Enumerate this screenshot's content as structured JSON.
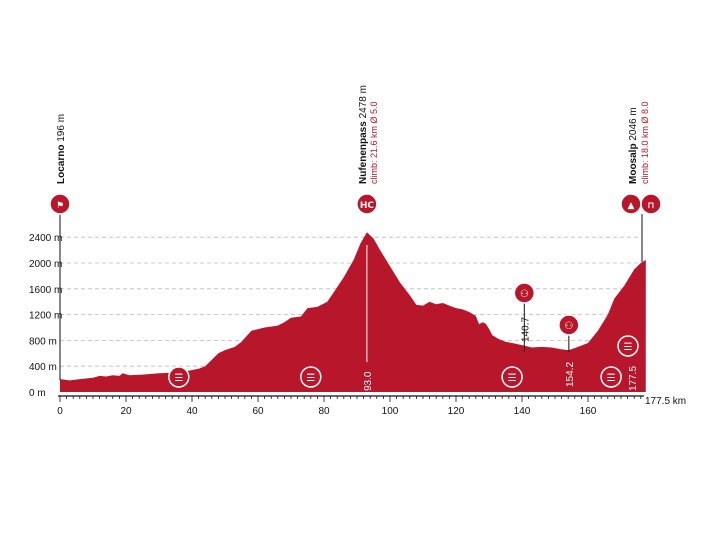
{
  "chart_data": {
    "type": "area",
    "x_unit": "km",
    "y_ticks": [
      "0 m",
      "400 m",
      "800 m",
      "1200 m",
      "1600 m",
      "2000 m",
      "2400 m"
    ],
    "y_tick_values": [
      0,
      400,
      800,
      1200,
      1600,
      2000,
      2400
    ],
    "x_ticks": [
      "0",
      "20",
      "40",
      "60",
      "80",
      "100",
      "120",
      "140",
      "160"
    ],
    "x_tick_values": [
      0,
      20,
      40,
      60,
      80,
      100,
      120,
      140,
      160
    ],
    "xlim": [
      0,
      177.5
    ],
    "ylim": [
      0,
      2478
    ],
    "end_label": "177.5 km",
    "colors": {
      "profile": "#b8162a",
      "grid": "#bbbbbb"
    },
    "profile": [
      [
        0,
        200
      ],
      [
        3,
        180
      ],
      [
        6,
        200
      ],
      [
        10,
        220
      ],
      [
        12,
        250
      ],
      [
        14,
        240
      ],
      [
        16,
        260
      ],
      [
        18,
        250
      ],
      [
        19,
        290
      ],
      [
        21,
        260
      ],
      [
        25,
        270
      ],
      [
        30,
        290
      ],
      [
        35,
        300
      ],
      [
        38,
        320
      ],
      [
        42,
        360
      ],
      [
        44,
        400
      ],
      [
        46,
        500
      ],
      [
        48,
        600
      ],
      [
        50,
        650
      ],
      [
        53,
        700
      ],
      [
        55,
        780
      ],
      [
        58,
        950
      ],
      [
        62,
        1000
      ],
      [
        66,
        1030
      ],
      [
        68,
        1080
      ],
      [
        70,
        1150
      ],
      [
        73,
        1170
      ],
      [
        75,
        1300
      ],
      [
        78,
        1320
      ],
      [
        81,
        1400
      ],
      [
        83,
        1550
      ],
      [
        86,
        1780
      ],
      [
        89,
        2050
      ],
      [
        91,
        2300
      ],
      [
        93,
        2478
      ],
      [
        95,
        2380
      ],
      [
        97,
        2200
      ],
      [
        100,
        1950
      ],
      [
        103,
        1700
      ],
      [
        106,
        1500
      ],
      [
        108,
        1350
      ],
      [
        110,
        1340
      ],
      [
        112,
        1400
      ],
      [
        114,
        1360
      ],
      [
        116,
        1380
      ],
      [
        118,
        1340
      ],
      [
        120,
        1300
      ],
      [
        122,
        1280
      ],
      [
        124,
        1240
      ],
      [
        126,
        1180
      ],
      [
        127,
        1050
      ],
      [
        128,
        1080
      ],
      [
        129,
        1060
      ],
      [
        130,
        980
      ],
      [
        131,
        880
      ],
      [
        133,
        820
      ],
      [
        135,
        780
      ],
      [
        137,
        760
      ],
      [
        140.7,
        720
      ],
      [
        143,
        690
      ],
      [
        146,
        700
      ],
      [
        149,
        690
      ],
      [
        152,
        660
      ],
      [
        154.2,
        650
      ],
      [
        157,
        700
      ],
      [
        160,
        760
      ],
      [
        163,
        950
      ],
      [
        166,
        1200
      ],
      [
        168,
        1450
      ],
      [
        171,
        1650
      ],
      [
        174,
        1900
      ],
      [
        176,
        2000
      ],
      [
        177.5,
        2046
      ]
    ],
    "points": [
      {
        "name": "Locarno",
        "elevation": "196 m",
        "climb": "",
        "km": 0,
        "icon": "start-flag-icon"
      },
      {
        "name": "Nufenenpass",
        "elevation": "2478 m",
        "climb": "climb: 21.6 km Ø 5.0",
        "km": 93.0,
        "km_label": "93.0",
        "icon": "mountain-hc-icon"
      },
      {
        "name": "Moosalp",
        "elevation": "2046 m",
        "climb": "climb: 18.0 km Ø 8.0",
        "km": 177.5,
        "km_label": "177.5",
        "icon": "mountain-finish-icon"
      }
    ],
    "sprints": [
      {
        "km": 140.7,
        "km_label": "140.7"
      },
      {
        "km": 154.2,
        "km_label": "154.2"
      }
    ],
    "feeds": [
      36,
      76,
      137,
      167
    ]
  }
}
